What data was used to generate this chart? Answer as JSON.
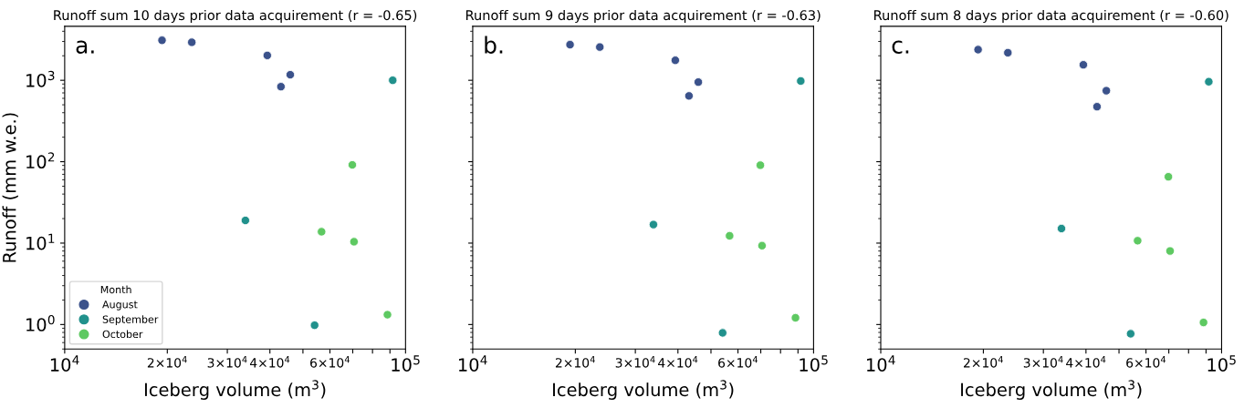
{
  "chart_data": [
    {
      "type": "scatter",
      "title": "Runoff sum 10 days prior data acquirement (r = -0.65)",
      "xlabel": "Iceberg volume (m$^{3}$)",
      "ylabel": "Runoff (mm w.e.)",
      "legend_title": "Month",
      "legend": "bottom left",
      "log": "xy",
      "marker": "circle",
      "annotations": [
        "a."
      ],
      "xlim": [
        10000,
        100000
      ],
      "ylim": [
        0.5,
        4600
      ],
      "xticks": [
        {
          "value": 10000,
          "label": "10$^{4}$"
        },
        {
          "value": 20000,
          "label": "2×10$^{4}$"
        },
        {
          "value": 30000,
          "label": "3×10$^{4}$"
        },
        {
          "value": 40000,
          "label": "4×10$^{4}$"
        },
        {
          "value": 50000,
          "label": null
        },
        {
          "value": 60000,
          "label": "6×10$^{4}$"
        },
        {
          "value": 70000,
          "label": null
        },
        {
          "value": 80000,
          "label": null
        },
        {
          "value": 90000,
          "label": null
        },
        {
          "value": 100000,
          "label": "10$^{5}$"
        }
      ],
      "yticks": [
        {
          "value": 1,
          "label": "10$^{0}$"
        },
        {
          "value": 10,
          "label": "10$^{1}$"
        },
        {
          "value": 100,
          "label": "10$^{2}$"
        },
        {
          "value": 1000,
          "label": "10$^{3}$"
        }
      ],
      "series": [
        {
          "name": "August",
          "color": "#3b528b",
          "x": [
            19300,
            23600,
            39300,
            45900,
            43100
          ],
          "values": [
            3100,
            2930,
            2020,
            1170,
            835
          ]
        },
        {
          "name": "September",
          "color": "#21918c",
          "x": [
            91700,
            33900,
            54100
          ],
          "values": [
            1000,
            19.0,
            0.98
          ]
        },
        {
          "name": "October",
          "color": "#5ec962",
          "x": [
            69800,
            56700,
            70600,
            88500
          ],
          "values": [
            91.4,
            13.8,
            10.4,
            1.32
          ]
        }
      ]
    },
    {
      "type": "scatter",
      "title": "Runoff sum 9 days prior data acquirement (r = -0.63)",
      "xlabel": "Iceberg volume (m$^{3}$)",
      "log": "xy",
      "marker": "circle",
      "tick_labels": "x",
      "annotations": [
        "b."
      ],
      "xlim": [
        10000,
        100000
      ],
      "ylim": [
        0.5,
        4600
      ],
      "xticks": [
        {
          "value": 10000,
          "label": "10$^{4}$"
        },
        {
          "value": 20000,
          "label": "2×10$^{4}$"
        },
        {
          "value": 30000,
          "label": "3×10$^{4}$"
        },
        {
          "value": 40000,
          "label": "4×10$^{4}$"
        },
        {
          "value": 50000,
          "label": null
        },
        {
          "value": 60000,
          "label": "6×10$^{4}$"
        },
        {
          "value": 70000,
          "label": null
        },
        {
          "value": 80000,
          "label": null
        },
        {
          "value": 90000,
          "label": null
        },
        {
          "value": 100000,
          "label": "10$^{5}$"
        }
      ],
      "yticks": [
        {
          "value": 1,
          "label": null
        },
        {
          "value": 10,
          "label": null
        },
        {
          "value": 100,
          "label": null
        },
        {
          "value": 1000,
          "label": null
        }
      ],
      "series": [
        {
          "color": "#3b528b",
          "x": [
            19300,
            23600,
            39300,
            45900,
            43100
          ],
          "values": [
            2740,
            2560,
            1760,
            950,
            643
          ]
        },
        {
          "color": "#21918c",
          "x": [
            91700,
            33900,
            54100
          ],
          "values": [
            980,
            16.9,
            0.79
          ]
        },
        {
          "color": "#5ec962",
          "x": [
            69800,
            56700,
            70600,
            88500
          ],
          "values": [
            90.6,
            12.3,
            9.3,
            1.21
          ]
        }
      ]
    },
    {
      "type": "scatter",
      "title": "Runoff sum 8 days prior data acquirement (r = -0.60)",
      "xlabel": "Iceberg volume (m$^{3}$)",
      "log": "xy",
      "marker": "circle",
      "tick_labels": "x",
      "annotations": [
        "c."
      ],
      "xlim": [
        10000,
        100000
      ],
      "ylim": [
        0.5,
        4600
      ],
      "xticks": [
        {
          "value": 10000,
          "label": "10$^{4}$"
        },
        {
          "value": 20000,
          "label": "2×10$^{4}$"
        },
        {
          "value": 30000,
          "label": "3×10$^{4}$"
        },
        {
          "value": 40000,
          "label": "4×10$^{4}$"
        },
        {
          "value": 50000,
          "label": null
        },
        {
          "value": 60000,
          "label": "6×10$^{4}$"
        },
        {
          "value": 70000,
          "label": null
        },
        {
          "value": 80000,
          "label": null
        },
        {
          "value": 90000,
          "label": null
        },
        {
          "value": 100000,
          "label": "10$^{5}$"
        }
      ],
      "yticks": [
        {
          "value": 1,
          "label": null
        },
        {
          "value": 10,
          "label": null
        },
        {
          "value": 100,
          "label": null
        },
        {
          "value": 1000,
          "label": null
        }
      ],
      "series": [
        {
          "color": "#3b528b",
          "x": [
            19300,
            23600,
            39300,
            45900,
            43100
          ],
          "values": [
            2380,
            2180,
            1550,
            745,
            474
          ]
        },
        {
          "color": "#21918c",
          "x": [
            91700,
            33900,
            54100
          ],
          "values": [
            960,
            15.1,
            0.77
          ]
        },
        {
          "color": "#5ec962",
          "x": [
            69800,
            56700,
            70600,
            88500
          ],
          "values": [
            65.3,
            10.7,
            8.0,
            1.06
          ]
        }
      ]
    }
  ]
}
